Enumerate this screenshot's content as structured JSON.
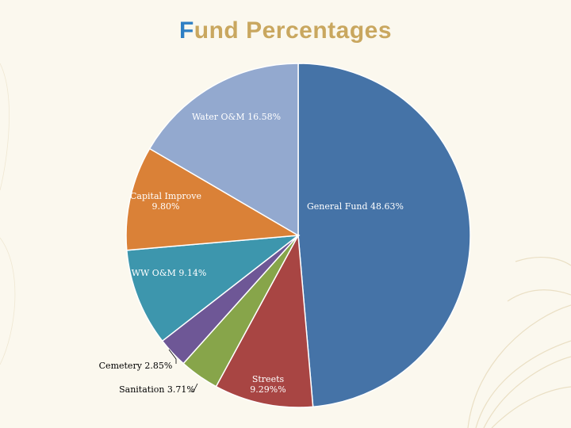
{
  "title_first": "F",
  "title_rest": "und Percentages",
  "chart_data": {
    "type": "pie",
    "title": "Fund Percentages",
    "slices": [
      {
        "name": "General Fund",
        "value": 48.63,
        "label": [
          "General Fund  48.63%"
        ],
        "color": "#4573a7",
        "label_color": "#ffffff"
      },
      {
        "name": "Streets",
        "value": 9.29,
        "label": [
          "Streets",
          "9.29%%"
        ],
        "color": "#a84543",
        "label_color": "#ffffff"
      },
      {
        "name": "Sanitation",
        "value": 3.71,
        "label": [
          "Sanitation  3.71%"
        ],
        "color": "#87a54a",
        "label_color": "#000000"
      },
      {
        "name": "Cemetery",
        "value": 2.85,
        "label": [
          "Cemetery  2.85%"
        ],
        "color": "#6e5796",
        "label_color": "#000000"
      },
      {
        "name": "WW O&M",
        "value": 9.14,
        "label": [
          "WW O&M   9.14%"
        ],
        "color": "#3d96ad",
        "label_color": "#ffffff"
      },
      {
        "name": "Capital Improve",
        "value": 9.8,
        "label": [
          "Capital Improve",
          "9.80%"
        ],
        "color": "#da8137",
        "label_color": "#ffffff"
      },
      {
        "name": "Water O&M",
        "value": 16.58,
        "label": [
          "Water O&M  16.58%"
        ],
        "color": "#93a9cf",
        "label_color": "#ffffff"
      }
    ]
  }
}
